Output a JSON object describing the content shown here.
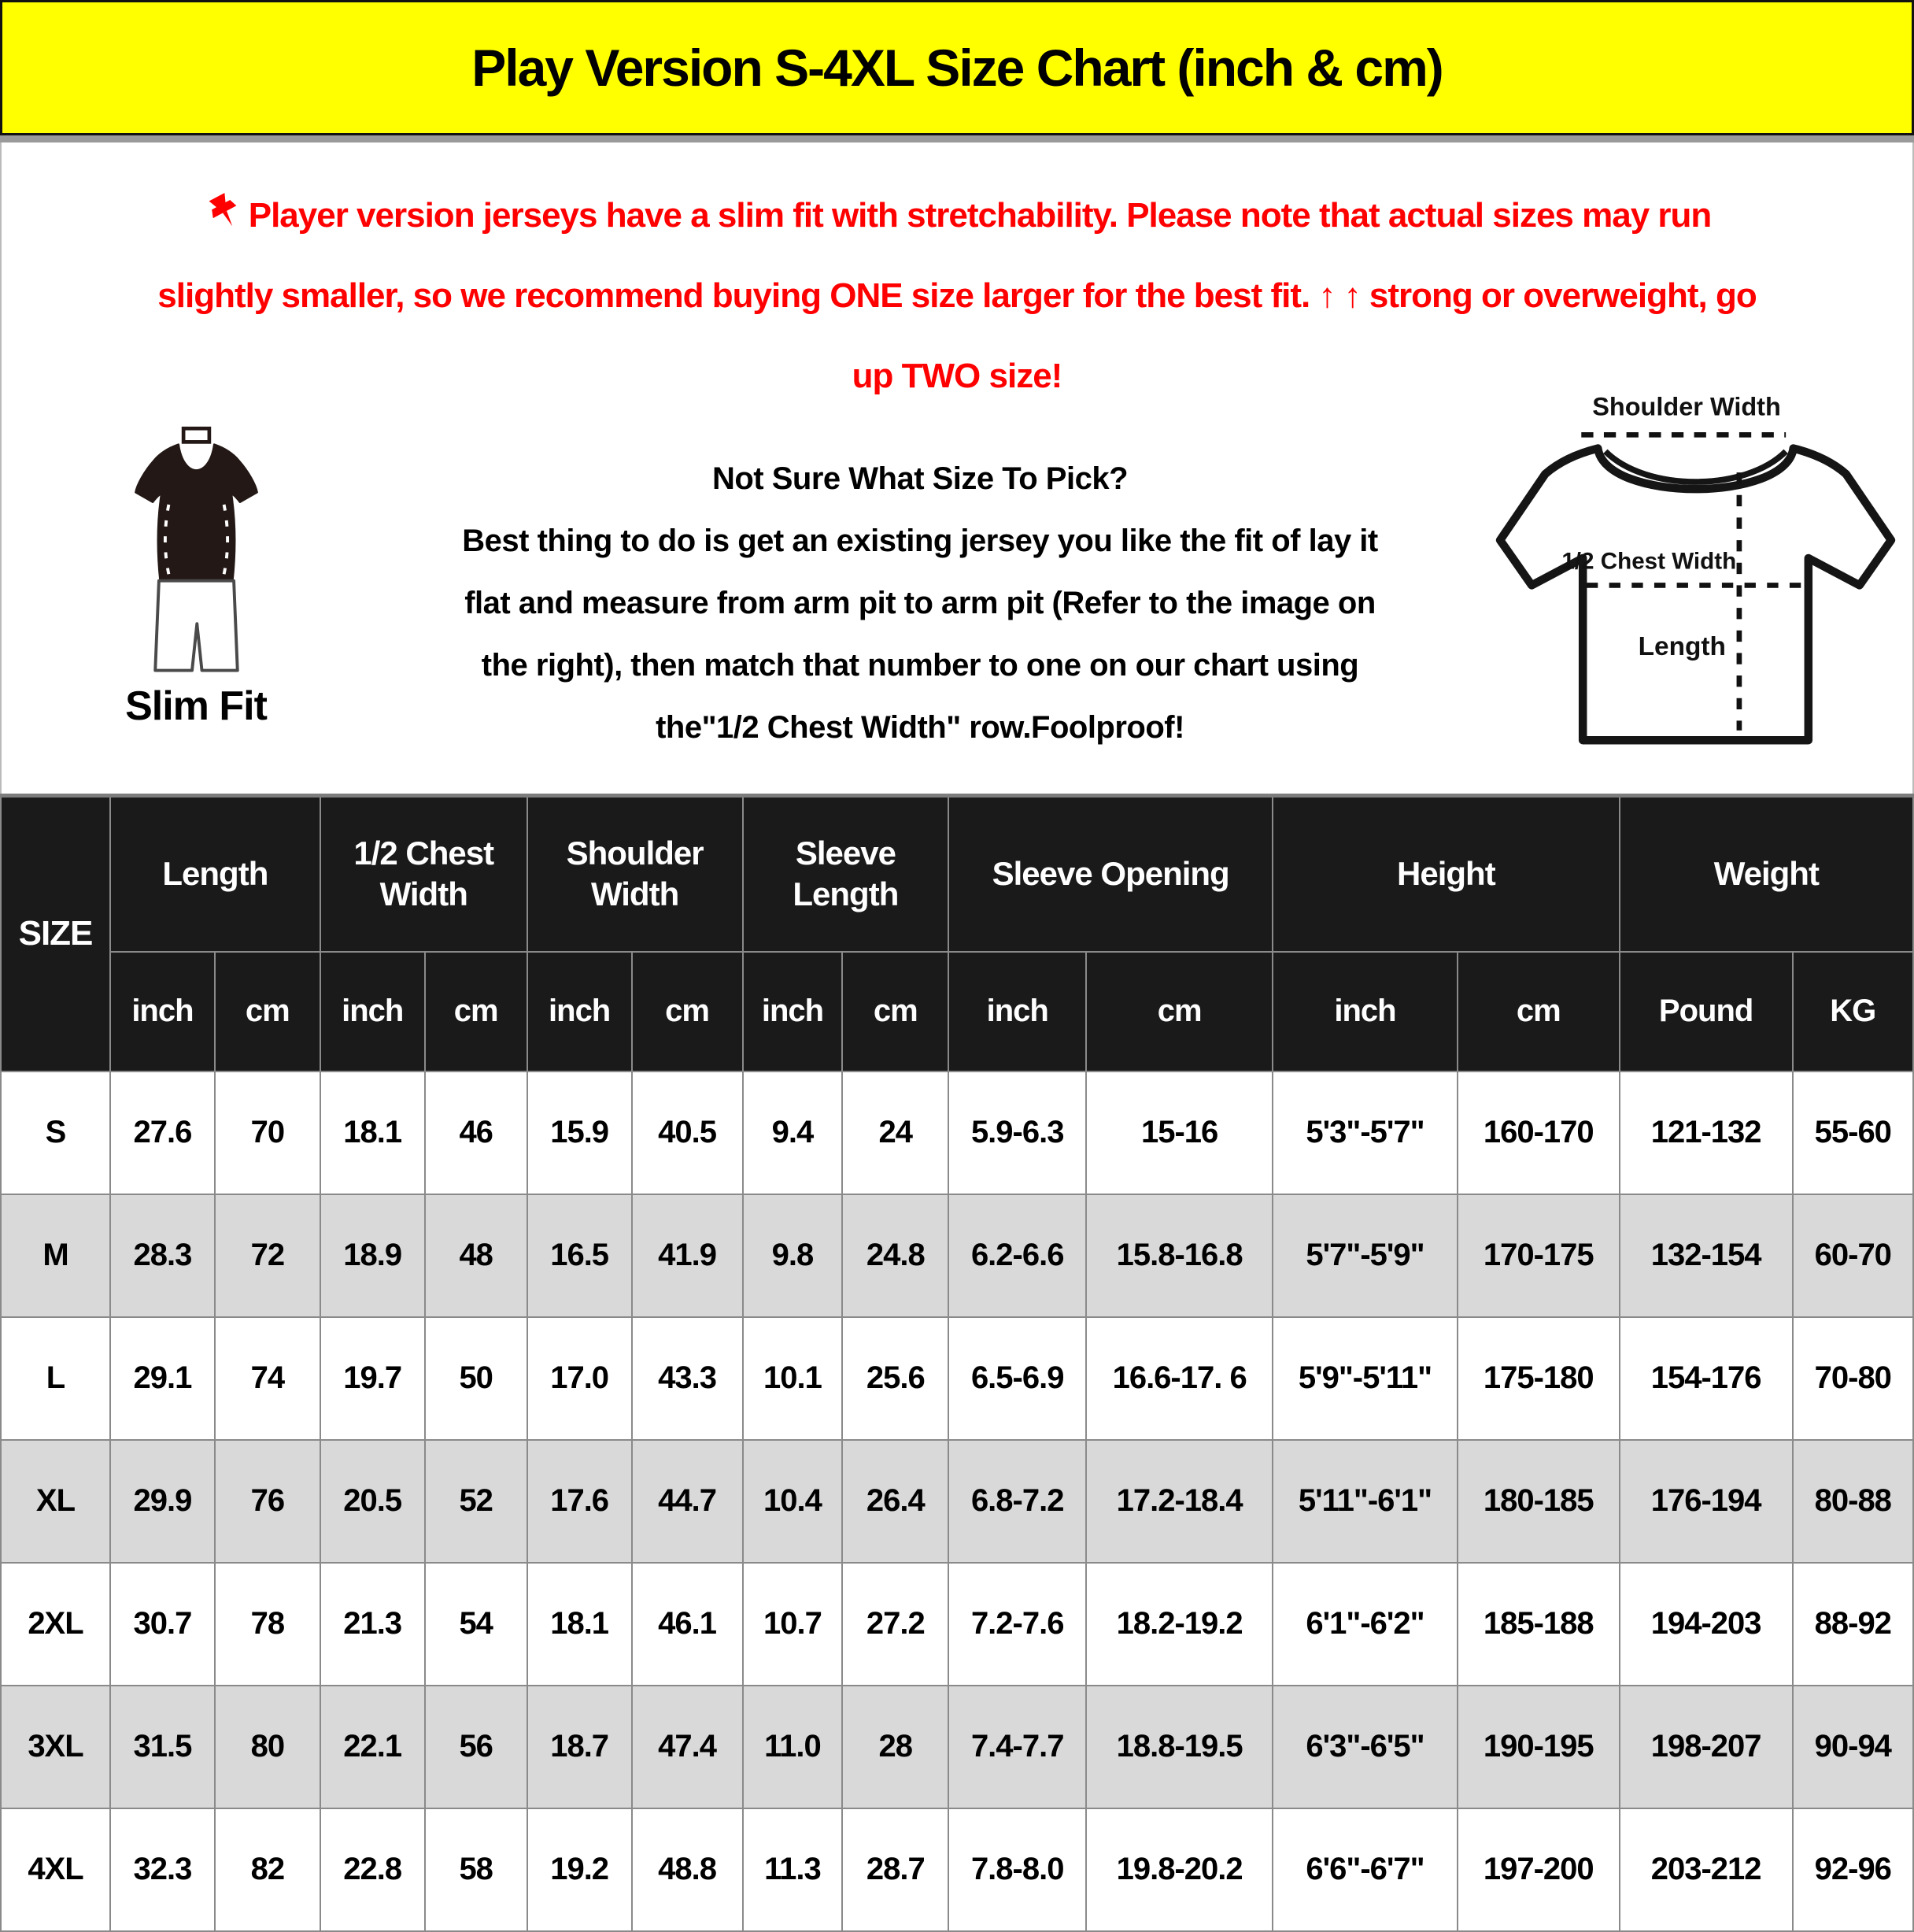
{
  "banner": {
    "title": "Play Version S-4XL Size Chart (inch & cm)"
  },
  "warning": {
    "lines": [
      "Player version jerseys have a slim fit with stretchability. Please note that actual sizes may run",
      "slightly smaller, so we recommend buying ONE size larger for the best fit. ↑ ↑ strong or overweight, go",
      "up TWO size!"
    ]
  },
  "fit_figure": {
    "label": "Slim Fit"
  },
  "instructions": {
    "lines": [
      "Not Sure What Size To Pick?",
      "Best thing to do is get an existing jersey you like the fit of lay it",
      "flat and measure from arm pit to arm pit (Refer to the image on",
      "the right), then match that number to one on our chart using",
      "the\"1/2 Chest Width\" row.Foolproof!"
    ]
  },
  "diagram": {
    "shoulder_width_label": "Shoulder Width",
    "chest_width_label": "1/2 Chest Width",
    "length_label": "Length"
  },
  "table": {
    "size_col_header": "SIZE",
    "groups": [
      {
        "label": "Length",
        "sub": [
          "inch",
          "cm"
        ]
      },
      {
        "label": "1/2 Chest Width",
        "sub": [
          "inch",
          "cm"
        ]
      },
      {
        "label": "Shoulder Width",
        "sub": [
          "inch",
          "cm"
        ]
      },
      {
        "label": "Sleeve Length",
        "sub": [
          "inch",
          "cm"
        ]
      },
      {
        "label": "Sleeve Opening",
        "sub": [
          "inch",
          "cm"
        ]
      },
      {
        "label": "Height",
        "sub": [
          "inch",
          "cm"
        ]
      },
      {
        "label": "Weight",
        "sub": [
          "Pound",
          "KG"
        ]
      }
    ],
    "rows": [
      {
        "size": "S",
        "values": [
          "27.6",
          "70",
          "18.1",
          "46",
          "15.9",
          "40.5",
          "9.4",
          "24",
          "5.9-6.3",
          "15-16",
          "5'3\"-5'7\"",
          "160-170",
          "121-132",
          "55-60"
        ]
      },
      {
        "size": "M",
        "values": [
          "28.3",
          "72",
          "18.9",
          "48",
          "16.5",
          "41.9",
          "9.8",
          "24.8",
          "6.2-6.6",
          "15.8-16.8",
          "5'7\"-5'9\"",
          "170-175",
          "132-154",
          "60-70"
        ]
      },
      {
        "size": "L",
        "values": [
          "29.1",
          "74",
          "19.7",
          "50",
          "17.0",
          "43.3",
          "10.1",
          "25.6",
          "6.5-6.9",
          "16.6-17. 6",
          "5'9\"-5'11\"",
          "175-180",
          "154-176",
          "70-80"
        ]
      },
      {
        "size": "XL",
        "values": [
          "29.9",
          "76",
          "20.5",
          "52",
          "17.6",
          "44.7",
          "10.4",
          "26.4",
          "6.8-7.2",
          "17.2-18.4",
          "5'11\"-6'1\"",
          "180-185",
          "176-194",
          "80-88"
        ]
      },
      {
        "size": "2XL",
        "values": [
          "30.7",
          "78",
          "21.3",
          "54",
          "18.1",
          "46.1",
          "10.7",
          "27.2",
          "7.2-7.6",
          "18.2-19.2",
          "6'1\"-6'2\"",
          "185-188",
          "194-203",
          "88-92"
        ]
      },
      {
        "size": "3XL",
        "values": [
          "31.5",
          "80",
          "22.1",
          "56",
          "18.7",
          "47.4",
          "11.0",
          "28",
          "7.4-7.7",
          "18.8-19.5",
          "6'3\"-6'5\"",
          "190-195",
          "198-207",
          "90-94"
        ]
      },
      {
        "size": "4XL",
        "values": [
          "32.3",
          "82",
          "22.8",
          "58",
          "19.2",
          "48.8",
          "11.3",
          "28.7",
          "7.8-8.0",
          "19.8-20.2",
          "6'6\"-6'7\"",
          "197-200",
          "203-212",
          "92-96"
        ]
      }
    ]
  },
  "colors": {
    "banner_bg": "#FFFF00",
    "warning_red": "#FF0000",
    "header_bg": "#1A1A1A",
    "row_alt_bg": "#D9D9D9",
    "table_border": "#8A8A8A",
    "figure_dark": "#231815"
  }
}
